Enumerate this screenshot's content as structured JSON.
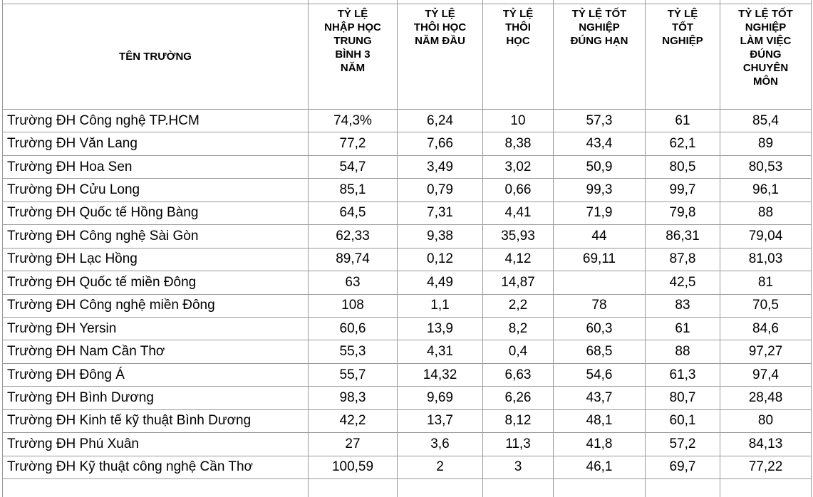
{
  "chart_data": {
    "type": "table",
    "columns": [
      "TÊN TRƯỜNG",
      "TỶ LỆ\nNHẬP HỌC\nTRUNG\nBÌNH 3\nNĂM",
      "TỶ LỆ\nTHÔI HỌC\nNĂM ĐẦU",
      "TỶ LỆ\nTHÔI\nHỌC",
      "TỶ LỆ TỐT\nNGHIỆP\nĐÚNG HẠN",
      "TỶ LỆ\nTỐT\nNGHIỆP",
      "TỶ LỆ TỐT\nNGHIỆP\nLÀM VIỆC\nĐÚNG\nCHUYÊN\nMÔN"
    ],
    "rows": [
      [
        "Trường ĐH Công nghệ TP.HCM",
        "74,3%",
        "6,24",
        "10",
        "57,3",
        "61",
        "85,4"
      ],
      [
        "Trường ĐH Văn Lang",
        "77,2",
        "7,66",
        "8,38",
        "43,4",
        "62,1",
        "89"
      ],
      [
        "Trường ĐH Hoa Sen",
        "54,7",
        "3,49",
        "3,02",
        "50,9",
        "80,5",
        "80,53"
      ],
      [
        "Trường ĐH Cửu Long",
        "85,1",
        "0,79",
        "0,66",
        "99,3",
        "99,7",
        "96,1"
      ],
      [
        "Trường ĐH Quốc tế Hồng Bàng",
        "64,5",
        "7,31",
        "4,41",
        "71,9",
        "79,8",
        "88"
      ],
      [
        "Trường ĐH Công nghệ Sài Gòn",
        "62,33",
        "9,38",
        "35,93",
        "44",
        "86,31",
        "79,04"
      ],
      [
        "Trường ĐH Lạc Hồng",
        "89,74",
        "0,12",
        "4,12",
        "69,11",
        "87,8",
        "81,03"
      ],
      [
        "Trường ĐH Quốc tế miền Đông",
        "63",
        "4,49",
        "14,87",
        "",
        "42,5",
        "81"
      ],
      [
        "Trường ĐH Công nghệ miền Đông",
        "108",
        "1,1",
        "2,2",
        "78",
        "83",
        "70,5"
      ],
      [
        "Trường ĐH Yersin",
        "60,6",
        "13,9",
        "8,2",
        "60,3",
        "61",
        "84,6"
      ],
      [
        "Trường ĐH Nam Cần Thơ",
        "55,3",
        "4,31",
        "0,4",
        "68,5",
        "88",
        "97,27"
      ],
      [
        "Trường ĐH Đông Á",
        "55,7",
        "14,32",
        "6,63",
        "54,6",
        "61,3",
        "97,4"
      ],
      [
        "Trường ĐH Bình Dương",
        "98,3",
        "9,69",
        "6,26",
        "43,7",
        "80,7",
        "28,48"
      ],
      [
        "Trường ĐH Kinh tế kỹ thuật Bình Dương",
        "42,2",
        "13,7",
        "8,12",
        "48,1",
        "60,1",
        "80"
      ],
      [
        "Trường ĐH Phú Xuân",
        "27",
        "3,6",
        "11,3",
        "41,8",
        "57,2",
        "84,13"
      ],
      [
        "Trường ĐH Kỹ thuật công nghệ Cần Thơ",
        "100,59",
        "2",
        "3",
        "46,1",
        "69,7",
        "77,22"
      ]
    ],
    "layout": {
      "grid": "on",
      "border_color": "#999999",
      "text_color": "#000000",
      "background_color": "#ffffff"
    }
  }
}
